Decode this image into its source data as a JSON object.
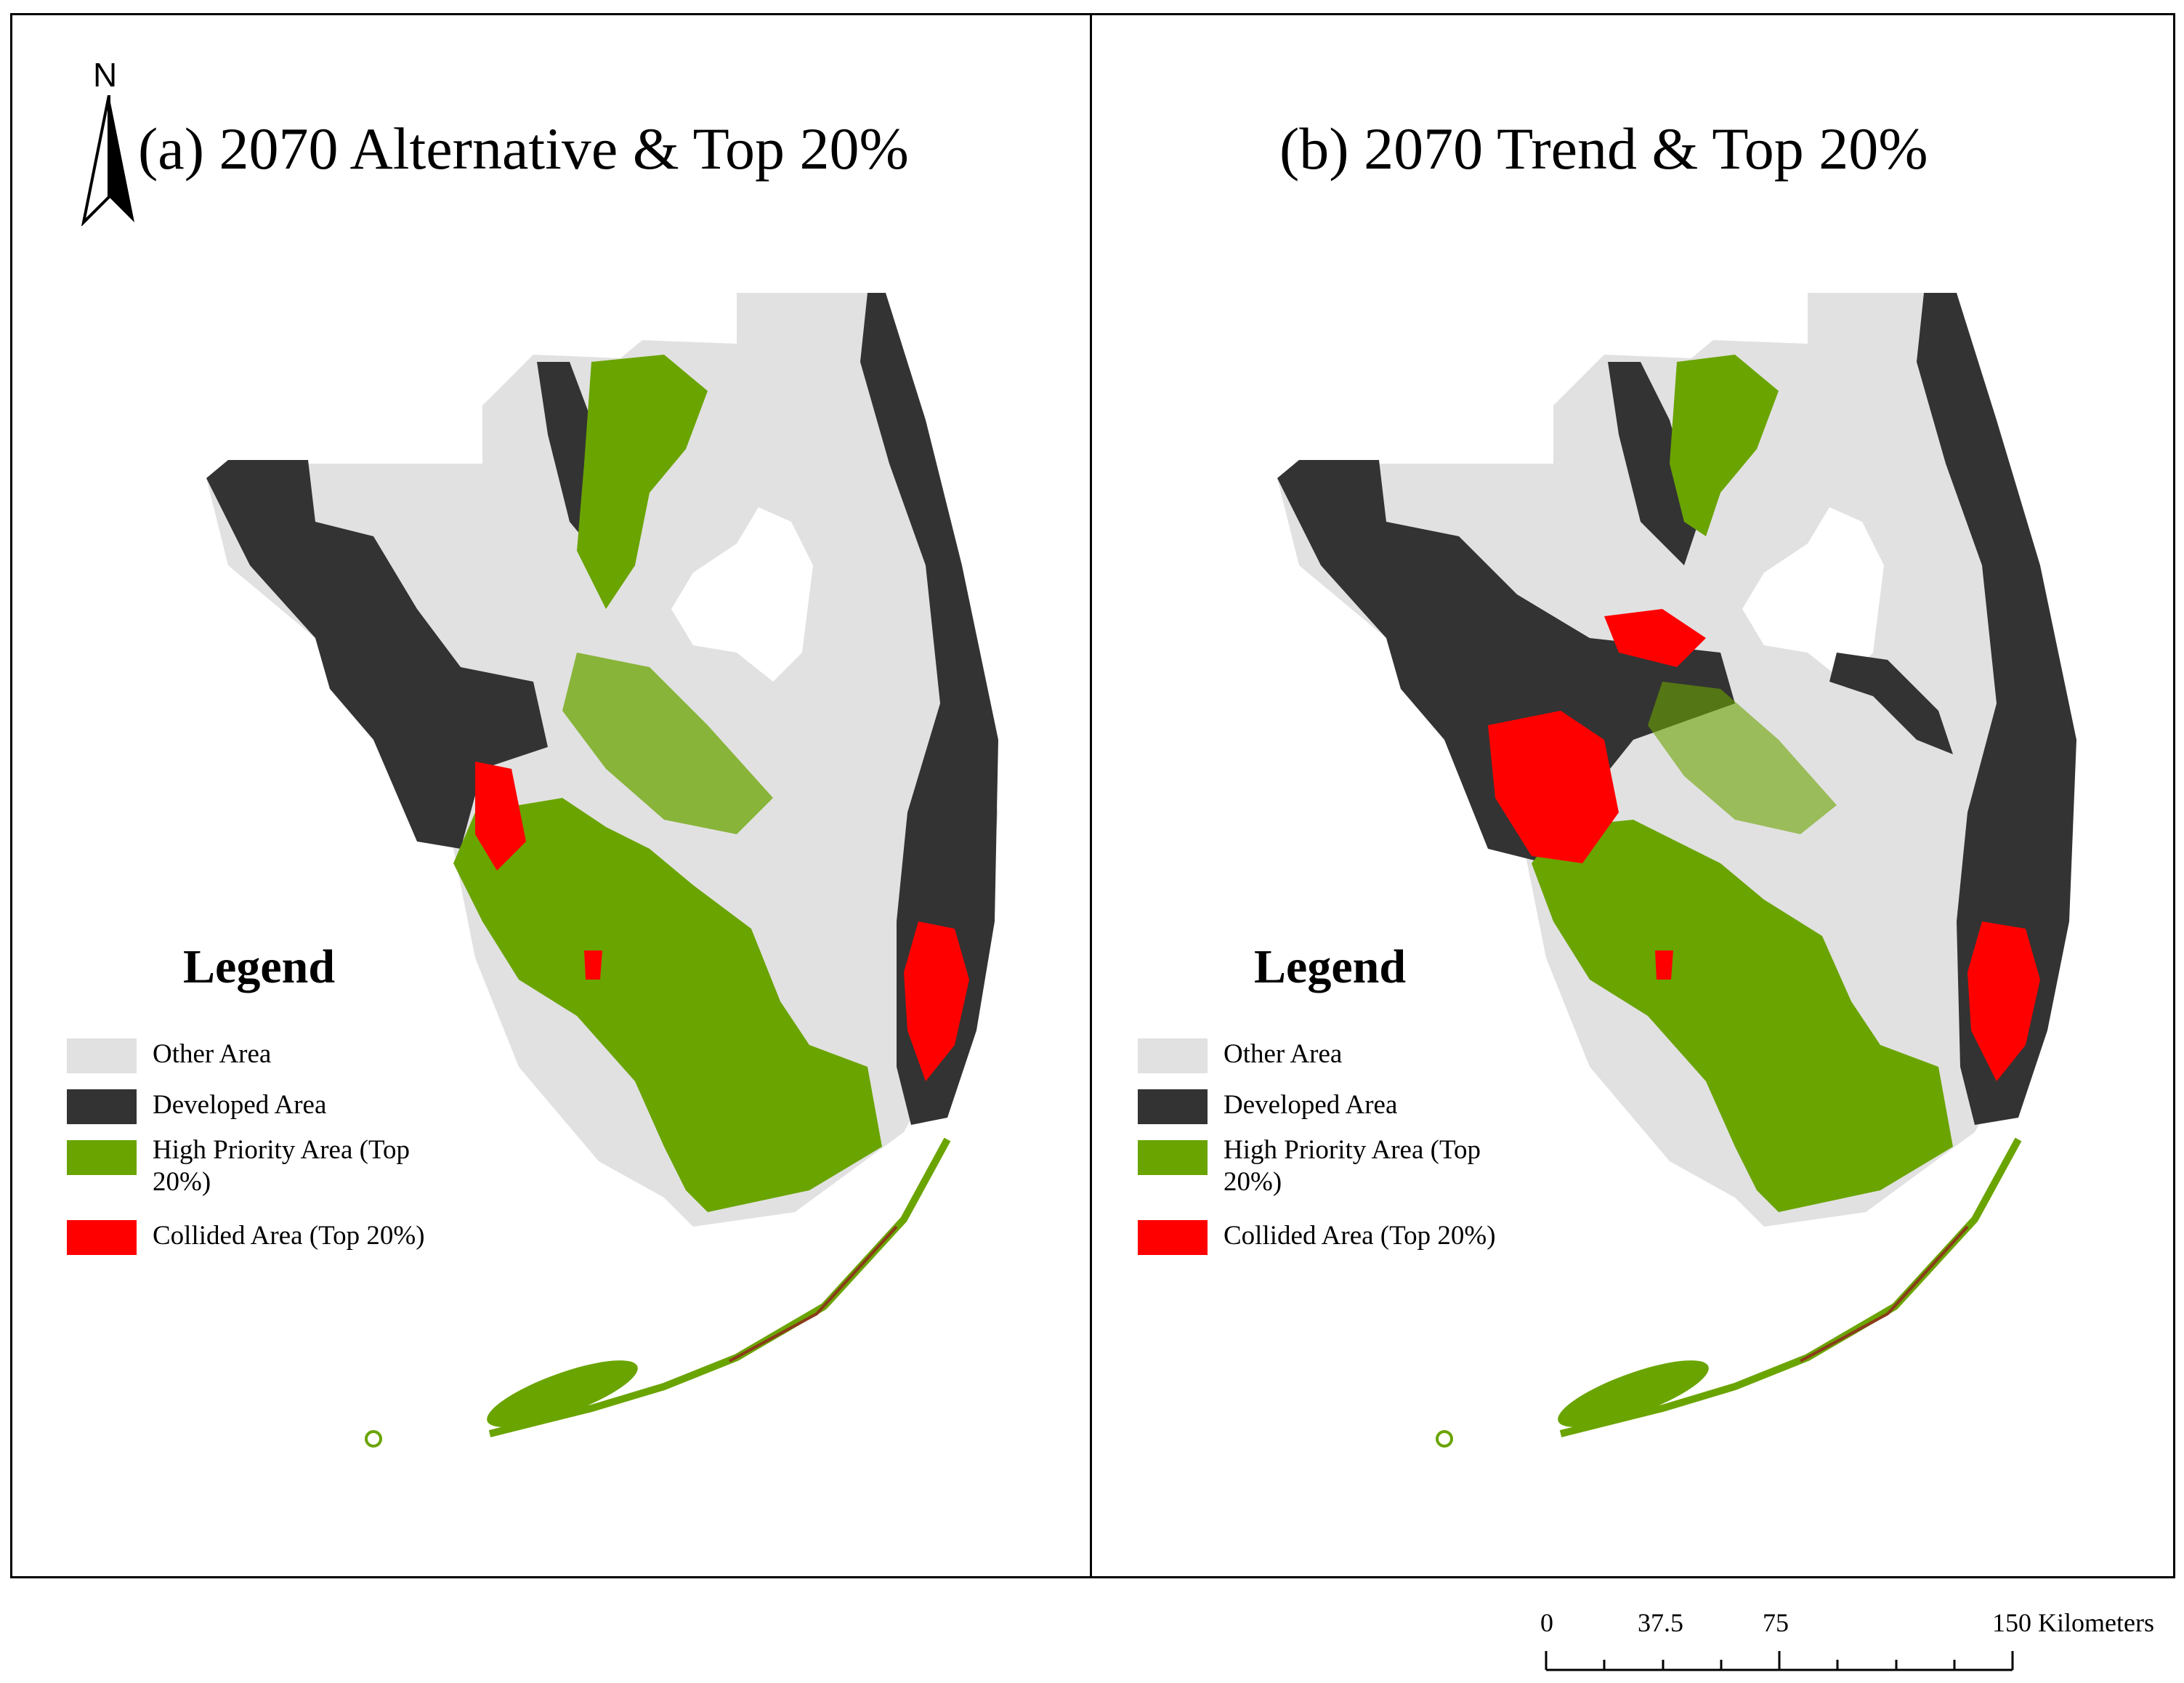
{
  "panels": [
    {
      "title": "(a) 2070 Alternative & Top 20%"
    },
    {
      "title": "(b) 2070 Trend & Top 20%"
    }
  ],
  "north_arrow": {
    "label": "N"
  },
  "legend": {
    "title": "Legend",
    "items": [
      {
        "label": "Other Area",
        "color": "#e1e1e1"
      },
      {
        "label": "Developed Area",
        "color": "#333333"
      },
      {
        "label": "High Priority Area (Top 20%)",
        "label_line1": "High Priority Area (Top",
        "label_line2": "20%)",
        "color": "#6aa400"
      },
      {
        "label": "Collided Area (Top 20%)",
        "color": "#ff0000"
      }
    ]
  },
  "scale_bar": {
    "labels": [
      "0",
      "37.5",
      "75",
      "150 Kilometers"
    ],
    "values_km": [
      0,
      37.5,
      75,
      150
    ]
  },
  "colors": {
    "other": "#e1e1e1",
    "developed": "#333333",
    "priority": "#6aa400",
    "collided": "#ff0000"
  }
}
